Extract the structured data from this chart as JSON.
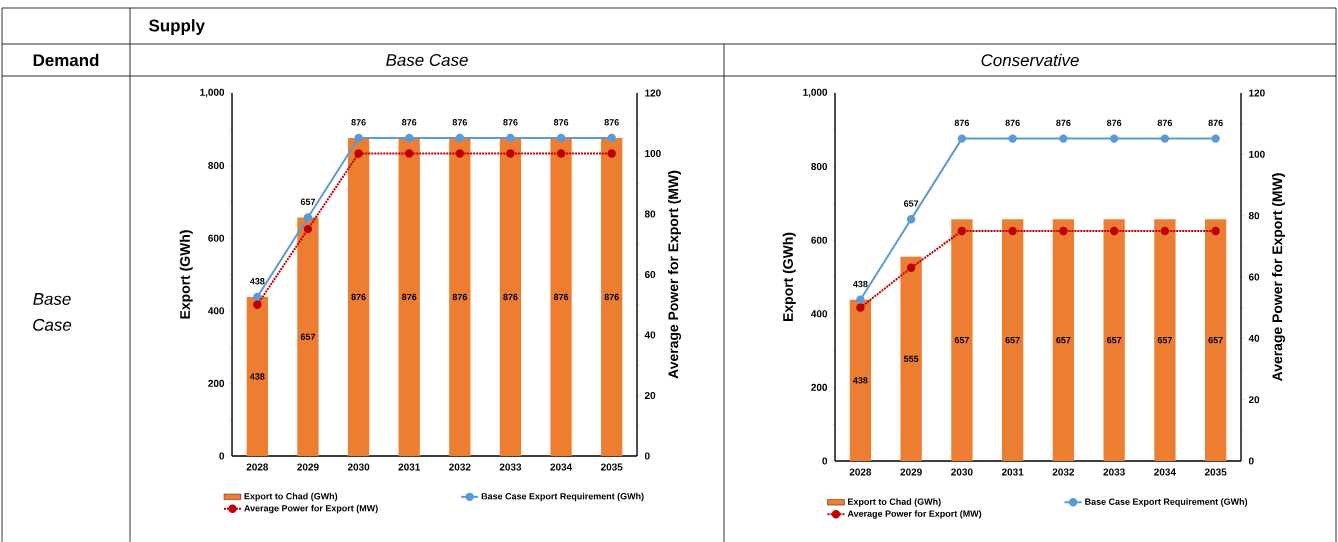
{
  "chart_data": [
    {
      "type": "bar",
      "title": "Base Case",
      "ylabel": "Export (GWh)",
      "y2label": "Average Power for Export (MW)",
      "annotations": [
        "Supply",
        "Demand",
        "Base Case"
      ],
      "categories": [
        "2028",
        "2029",
        "2030",
        "2031",
        "2032",
        "2033",
        "2034",
        "2035"
      ],
      "series": [
        {
          "name": "Export to Chad (GWh)",
          "color": "#ed7d31",
          "values": [
            438,
            657,
            876,
            876,
            876,
            876,
            876,
            876
          ],
          "value_labels": [
            "438",
            "657",
            "876",
            "876",
            "876",
            "876",
            "876",
            "876"
          ]
        },
        {
          "name": "Base Case Export Requirement (GWh)",
          "type": "line",
          "color": "#5b9bd5",
          "marker": "circle",
          "line_style": "solid",
          "values": [
            438,
            657,
            876,
            876,
            876,
            876,
            876,
            876
          ],
          "value_labels": [
            "438",
            "657",
            "876",
            "876",
            "876",
            "876",
            "876",
            "876"
          ]
        },
        {
          "name": "Average Power for Export (MW)",
          "type": "line",
          "axis": "y2",
          "color": "#c00000",
          "marker": "circle",
          "line_style": "dotted",
          "values": [
            50,
            75,
            100,
            100,
            100,
            100,
            100,
            100
          ]
        }
      ],
      "ylim": [
        0,
        1000
      ],
      "yticks": [
        0,
        200,
        400,
        600,
        800,
        {
          "value": 1000,
          "label": "1,000"
        }
      ],
      "y2lim": [
        0,
        120
      ],
      "y2ticks": [
        0,
        20,
        40,
        60,
        80,
        100,
        120
      ],
      "grid": false,
      "legend": "bottom"
    },
    {
      "type": "bar",
      "title": "Conservative",
      "ylabel": "Export (GWh)",
      "y2label": "Average Power for Export (MW)",
      "categories": [
        "2028",
        "2029",
        "2030",
        "2031",
        "2032",
        "2033",
        "2034",
        "2035"
      ],
      "series": [
        {
          "name": "Export to Chad (GWh)",
          "color": "#ed7d31",
          "values": [
            438,
            555,
            657,
            657,
            657,
            657,
            657,
            657
          ],
          "value_labels": [
            "438",
            "555",
            "657",
            "657",
            "657",
            "657",
            "657",
            "657"
          ]
        },
        {
          "name": "Base Case Export Requirement (GWh)",
          "type": "line",
          "color": "#5b9bd5",
          "marker": "circle",
          "line_style": "solid",
          "values": [
            438,
            657,
            876,
            876,
            876,
            876,
            876,
            876
          ],
          "value_labels": [
            "438",
            "657",
            "876",
            "876",
            "876",
            "876",
            "876",
            "876"
          ]
        },
        {
          "name": "Average Power for Export (MW)",
          "type": "line",
          "axis": "y2",
          "color": "#c00000",
          "marker": "circle",
          "line_style": "dotted",
          "values": [
            50,
            63,
            75,
            75,
            75,
            75,
            75,
            75
          ]
        }
      ],
      "ylim": [
        0,
        1000
      ],
      "yticks": [
        0,
        200,
        400,
        600,
        800,
        {
          "value": 1000,
          "label": "1,000"
        }
      ],
      "y2lim": [
        0,
        120
      ],
      "y2ticks": [
        0,
        20,
        40,
        60,
        80,
        100,
        120
      ],
      "grid": false,
      "legend": "bottom"
    }
  ]
}
